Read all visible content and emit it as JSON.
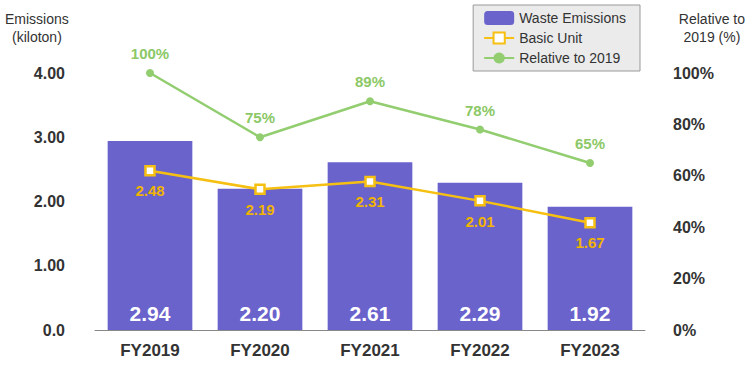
{
  "chart_data": {
    "type": "bar",
    "categories": [
      "FY2019",
      "FY2020",
      "FY2021",
      "FY2022",
      "FY2023"
    ],
    "ylabel": "Emissions\n(kiloton)",
    "y2label": "Relative to\n2019 (%)",
    "ylim": [
      0,
      4
    ],
    "yticks": [
      {
        "value": 0,
        "label": "0.0"
      },
      {
        "value": 1,
        "label": "1.00"
      },
      {
        "value": 2,
        "label": "2.00"
      },
      {
        "value": 3,
        "label": "3.00"
      },
      {
        "value": 4,
        "label": "4.00"
      }
    ],
    "y2lim": [
      0,
      100
    ],
    "y2ticks": [
      {
        "value": 0,
        "label": "0%"
      },
      {
        "value": 20,
        "label": "20%"
      },
      {
        "value": 40,
        "label": "40%"
      },
      {
        "value": 60,
        "label": "60%"
      },
      {
        "value": 80,
        "label": "80%"
      },
      {
        "value": 100,
        "label": "100%"
      }
    ],
    "legend": "upper right",
    "grid": false,
    "data_labels": true,
    "series": [
      {
        "name": "Waste Emissions",
        "type": "bar",
        "color": "#6a63cc",
        "values": [
          2.94,
          2.2,
          2.61,
          2.29,
          1.92
        ],
        "value_labels": [
          "2.94",
          "2.20",
          "2.61",
          "2.29",
          "1.92"
        ]
      },
      {
        "name": "Basic Unit",
        "type": "line",
        "color": "#f5c012",
        "marker": "square",
        "values": [
          2.48,
          2.19,
          2.31,
          2.01,
          1.67
        ]
      },
      {
        "name": "Relative to 2019",
        "type": "line",
        "color": "#92cd6f",
        "marker": "circle",
        "axis": "y2",
        "values": [
          100,
          75,
          89,
          78,
          65
        ],
        "value_labels": [
          "100%",
          "75%",
          "89%",
          "78%",
          "65%"
        ]
      }
    ]
  }
}
